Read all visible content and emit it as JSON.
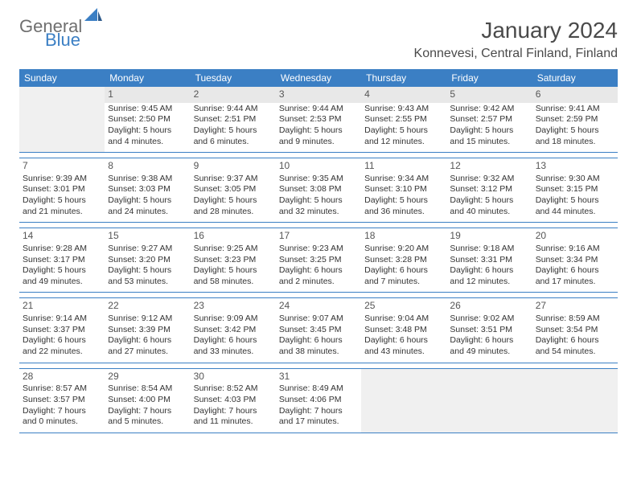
{
  "logo": {
    "text1": "General",
    "text2": "Blue"
  },
  "title": "January 2024",
  "location": "Konnevesi, Central Finland, Finland",
  "colors": {
    "header_bg": "#3b7fc4",
    "rule": "#3b7fc4",
    "text": "#333333",
    "muted_bg": "#e8e8e8"
  },
  "day_headers": [
    "Sunday",
    "Monday",
    "Tuesday",
    "Wednesday",
    "Thursday",
    "Friday",
    "Saturday"
  ],
  "weeks": [
    [
      {
        "blank": true
      },
      {
        "n": "1",
        "sunrise": "9:45 AM",
        "sunset": "2:50 PM",
        "daylight": "5 hours and 4 minutes."
      },
      {
        "n": "2",
        "sunrise": "9:44 AM",
        "sunset": "2:51 PM",
        "daylight": "5 hours and 6 minutes."
      },
      {
        "n": "3",
        "sunrise": "9:44 AM",
        "sunset": "2:53 PM",
        "daylight": "5 hours and 9 minutes."
      },
      {
        "n": "4",
        "sunrise": "9:43 AM",
        "sunset": "2:55 PM",
        "daylight": "5 hours and 12 minutes."
      },
      {
        "n": "5",
        "sunrise": "9:42 AM",
        "sunset": "2:57 PM",
        "daylight": "5 hours and 15 minutes."
      },
      {
        "n": "6",
        "sunrise": "9:41 AM",
        "sunset": "2:59 PM",
        "daylight": "5 hours and 18 minutes."
      }
    ],
    [
      {
        "n": "7",
        "sunrise": "9:39 AM",
        "sunset": "3:01 PM",
        "daylight": "5 hours and 21 minutes."
      },
      {
        "n": "8",
        "sunrise": "9:38 AM",
        "sunset": "3:03 PM",
        "daylight": "5 hours and 24 minutes."
      },
      {
        "n": "9",
        "sunrise": "9:37 AM",
        "sunset": "3:05 PM",
        "daylight": "5 hours and 28 minutes."
      },
      {
        "n": "10",
        "sunrise": "9:35 AM",
        "sunset": "3:08 PM",
        "daylight": "5 hours and 32 minutes."
      },
      {
        "n": "11",
        "sunrise": "9:34 AM",
        "sunset": "3:10 PM",
        "daylight": "5 hours and 36 minutes."
      },
      {
        "n": "12",
        "sunrise": "9:32 AM",
        "sunset": "3:12 PM",
        "daylight": "5 hours and 40 minutes."
      },
      {
        "n": "13",
        "sunrise": "9:30 AM",
        "sunset": "3:15 PM",
        "daylight": "5 hours and 44 minutes."
      }
    ],
    [
      {
        "n": "14",
        "sunrise": "9:28 AM",
        "sunset": "3:17 PM",
        "daylight": "5 hours and 49 minutes."
      },
      {
        "n": "15",
        "sunrise": "9:27 AM",
        "sunset": "3:20 PM",
        "daylight": "5 hours and 53 minutes."
      },
      {
        "n": "16",
        "sunrise": "9:25 AM",
        "sunset": "3:23 PM",
        "daylight": "5 hours and 58 minutes."
      },
      {
        "n": "17",
        "sunrise": "9:23 AM",
        "sunset": "3:25 PM",
        "daylight": "6 hours and 2 minutes."
      },
      {
        "n": "18",
        "sunrise": "9:20 AM",
        "sunset": "3:28 PM",
        "daylight": "6 hours and 7 minutes."
      },
      {
        "n": "19",
        "sunrise": "9:18 AM",
        "sunset": "3:31 PM",
        "daylight": "6 hours and 12 minutes."
      },
      {
        "n": "20",
        "sunrise": "9:16 AM",
        "sunset": "3:34 PM",
        "daylight": "6 hours and 17 minutes."
      }
    ],
    [
      {
        "n": "21",
        "sunrise": "9:14 AM",
        "sunset": "3:37 PM",
        "daylight": "6 hours and 22 minutes."
      },
      {
        "n": "22",
        "sunrise": "9:12 AM",
        "sunset": "3:39 PM",
        "daylight": "6 hours and 27 minutes."
      },
      {
        "n": "23",
        "sunrise": "9:09 AM",
        "sunset": "3:42 PM",
        "daylight": "6 hours and 33 minutes."
      },
      {
        "n": "24",
        "sunrise": "9:07 AM",
        "sunset": "3:45 PM",
        "daylight": "6 hours and 38 minutes."
      },
      {
        "n": "25",
        "sunrise": "9:04 AM",
        "sunset": "3:48 PM",
        "daylight": "6 hours and 43 minutes."
      },
      {
        "n": "26",
        "sunrise": "9:02 AM",
        "sunset": "3:51 PM",
        "daylight": "6 hours and 49 minutes."
      },
      {
        "n": "27",
        "sunrise": "8:59 AM",
        "sunset": "3:54 PM",
        "daylight": "6 hours and 54 minutes."
      }
    ],
    [
      {
        "n": "28",
        "sunrise": "8:57 AM",
        "sunset": "3:57 PM",
        "daylight": "7 hours and 0 minutes."
      },
      {
        "n": "29",
        "sunrise": "8:54 AM",
        "sunset": "4:00 PM",
        "daylight": "7 hours and 5 minutes."
      },
      {
        "n": "30",
        "sunrise": "8:52 AM",
        "sunset": "4:03 PM",
        "daylight": "7 hours and 11 minutes."
      },
      {
        "n": "31",
        "sunrise": "8:49 AM",
        "sunset": "4:06 PM",
        "daylight": "7 hours and 17 minutes."
      },
      {
        "blank": true
      },
      {
        "blank": true
      },
      {
        "blank": true
      }
    ]
  ],
  "labels": {
    "sunrise": "Sunrise:",
    "sunset": "Sunset:",
    "daylight": "Daylight:"
  }
}
